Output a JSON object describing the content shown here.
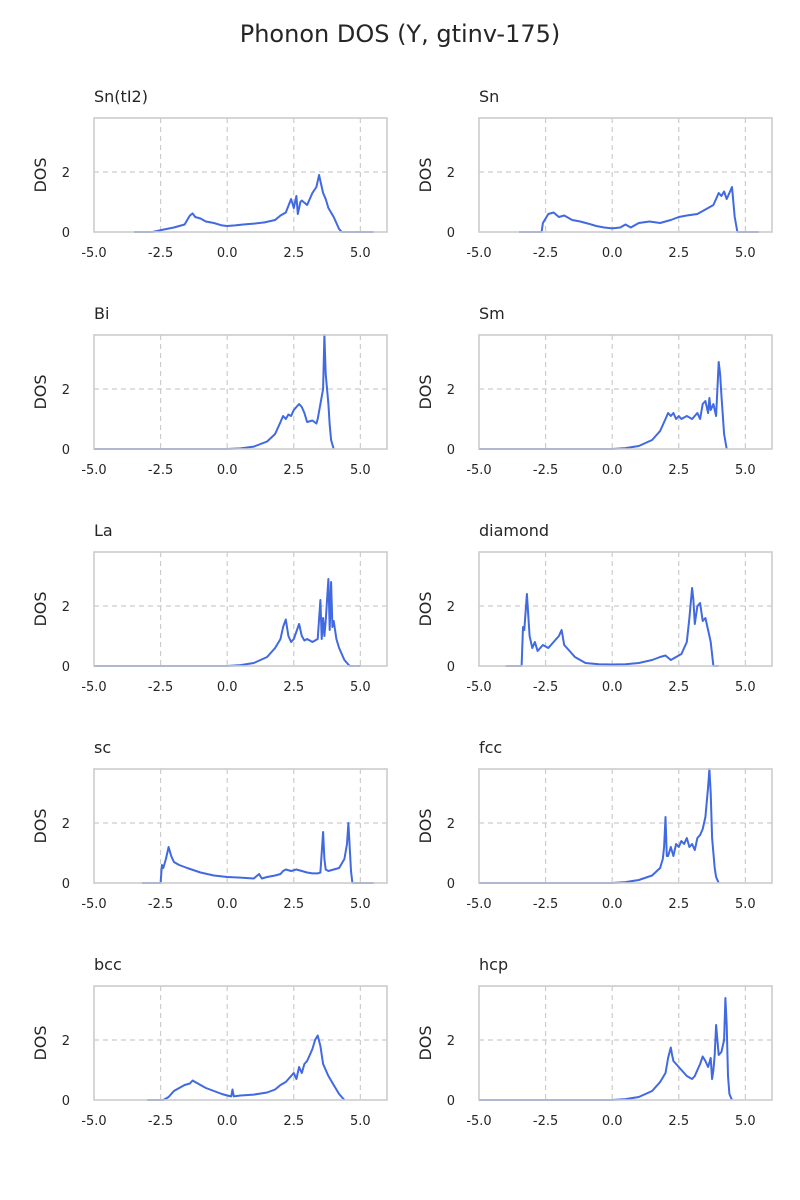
{
  "figure": {
    "title": "Phonon DOS (Y, gtinv-175)"
  },
  "style": {
    "line_color": "#4169e1",
    "grid_color": "#cccccc",
    "frame_color": "#cccccc"
  },
  "chart_data": [
    {
      "type": "line",
      "title": "Sn(tI2)",
      "xlabel": "",
      "ylabel": "DOS",
      "xlim": [
        -5.0,
        6.0
      ],
      "ylim": [
        0,
        3.8
      ],
      "xticks": [
        "-5.0",
        "-2.5",
        "0.0",
        "2.5",
        "5.0"
      ],
      "yticks": [
        "0",
        "2"
      ],
      "grid": true,
      "series": [
        {
          "x": [
            -3.5,
            -2.8,
            -2.4,
            -2.0,
            -1.6,
            -1.4,
            -1.3,
            -1.2,
            -1.0,
            -0.8,
            -0.5,
            -0.2,
            0.0,
            0.3,
            0.6,
            1.0,
            1.4,
            1.8,
            2.0,
            2.2,
            2.4,
            2.5,
            2.6,
            2.65,
            2.75,
            2.8,
            3.0,
            3.2,
            3.35,
            3.45,
            3.5,
            3.6,
            3.7,
            3.8,
            4.0,
            4.1,
            4.2,
            4.3,
            4.5,
            5.5
          ],
          "y": [
            0,
            0,
            0.08,
            0.15,
            0.25,
            0.55,
            0.62,
            0.5,
            0.45,
            0.35,
            0.3,
            0.22,
            0.2,
            0.22,
            0.25,
            0.28,
            0.32,
            0.4,
            0.55,
            0.65,
            1.1,
            0.8,
            1.2,
            0.6,
            1.0,
            1.05,
            0.9,
            1.3,
            1.5,
            1.9,
            1.7,
            1.3,
            1.1,
            0.8,
            0.5,
            0.3,
            0.1,
            0,
            0,
            0
          ]
        }
      ]
    },
    {
      "type": "line",
      "title": "Sn",
      "xlabel": "",
      "ylabel": "DOS",
      "xlim": [
        -5.0,
        6.0
      ],
      "ylim": [
        0,
        3.8
      ],
      "xticks": [
        "-5.0",
        "-2.5",
        "0.0",
        "2.5",
        "5.0"
      ],
      "yticks": [
        "0",
        "2"
      ],
      "grid": true,
      "series": [
        {
          "x": [
            -3.5,
            -2.65,
            -2.6,
            -2.4,
            -2.2,
            -2.0,
            -1.8,
            -1.5,
            -1.2,
            -0.9,
            -0.6,
            -0.3,
            0.0,
            0.3,
            0.5,
            0.7,
            1.0,
            1.4,
            1.8,
            2.2,
            2.5,
            2.8,
            3.2,
            3.5,
            3.8,
            4.0,
            4.1,
            4.2,
            4.3,
            4.4,
            4.5,
            4.6,
            4.7,
            5.5
          ],
          "y": [
            0,
            0,
            0.3,
            0.6,
            0.65,
            0.5,
            0.55,
            0.4,
            0.35,
            0.28,
            0.2,
            0.15,
            0.12,
            0.15,
            0.25,
            0.15,
            0.3,
            0.35,
            0.3,
            0.4,
            0.5,
            0.55,
            0.6,
            0.75,
            0.9,
            1.3,
            1.2,
            1.35,
            1.1,
            1.3,
            1.5,
            0.5,
            0,
            0
          ]
        }
      ]
    },
    {
      "type": "line",
      "title": "Bi",
      "xlabel": "",
      "ylabel": "DOS",
      "xlim": [
        -5.0,
        6.0
      ],
      "ylim": [
        0,
        3.8
      ],
      "xticks": [
        "-5.0",
        "-2.5",
        "0.0",
        "2.5",
        "5.0"
      ],
      "yticks": [
        "0",
        "2"
      ],
      "grid": true,
      "series": [
        {
          "x": [
            -5.0,
            0.0,
            0.5,
            1.0,
            1.5,
            1.8,
            2.0,
            2.1,
            2.2,
            2.3,
            2.4,
            2.5,
            2.6,
            2.7,
            2.8,
            2.9,
            3.0,
            3.2,
            3.35,
            3.4,
            3.5,
            3.6,
            3.65,
            3.7,
            3.8,
            3.85,
            3.9,
            4.0
          ],
          "y": [
            0,
            0,
            0.02,
            0.08,
            0.25,
            0.5,
            0.9,
            1.1,
            1.0,
            1.15,
            1.1,
            1.3,
            1.4,
            1.5,
            1.4,
            1.2,
            0.9,
            0.95,
            0.85,
            1.0,
            1.5,
            2.0,
            3.8,
            2.5,
            1.5,
            0.8,
            0.3,
            0
          ]
        }
      ]
    },
    {
      "type": "line",
      "title": "Sm",
      "xlabel": "",
      "ylabel": "DOS",
      "xlim": [
        -5.0,
        6.0
      ],
      "ylim": [
        0,
        3.8
      ],
      "xticks": [
        "-5.0",
        "-2.5",
        "0.0",
        "2.5",
        "5.0"
      ],
      "yticks": [
        "0",
        "2"
      ],
      "grid": true,
      "series": [
        {
          "x": [
            -5.0,
            0.0,
            0.5,
            1.0,
            1.5,
            1.8,
            2.0,
            2.1,
            2.2,
            2.3,
            2.4,
            2.5,
            2.6,
            2.8,
            3.0,
            3.2,
            3.3,
            3.4,
            3.5,
            3.6,
            3.65,
            3.7,
            3.8,
            3.9,
            4.0,
            4.05,
            4.1,
            4.2,
            4.3
          ],
          "y": [
            0,
            0,
            0.03,
            0.1,
            0.3,
            0.6,
            1.0,
            1.2,
            1.1,
            1.2,
            1.0,
            1.1,
            1.0,
            1.1,
            1.0,
            1.2,
            1.0,
            1.5,
            1.6,
            1.2,
            1.7,
            1.3,
            1.5,
            1.1,
            2.9,
            2.5,
            1.8,
            0.5,
            0
          ]
        }
      ]
    },
    {
      "type": "line",
      "title": "La",
      "xlabel": "",
      "ylabel": "DOS",
      "xlim": [
        -5.0,
        6.0
      ],
      "ylim": [
        0,
        3.8
      ],
      "xticks": [
        "-5.0",
        "-2.5",
        "0.0",
        "2.5",
        "5.0"
      ],
      "yticks": [
        "0",
        "2"
      ],
      "grid": true,
      "series": [
        {
          "x": [
            -5.0,
            0.0,
            0.5,
            1.0,
            1.5,
            1.8,
            2.0,
            2.1,
            2.2,
            2.3,
            2.4,
            2.5,
            2.7,
            2.8,
            2.9,
            3.0,
            3.2,
            3.4,
            3.5,
            3.55,
            3.6,
            3.65,
            3.7,
            3.8,
            3.85,
            3.9,
            3.95,
            4.0,
            4.1,
            4.2,
            4.4,
            4.6,
            5.0
          ],
          "y": [
            0,
            0,
            0.03,
            0.1,
            0.3,
            0.6,
            0.9,
            1.3,
            1.55,
            1.0,
            0.8,
            0.9,
            1.4,
            1.0,
            0.85,
            0.9,
            0.8,
            0.9,
            2.2,
            0.9,
            1.6,
            1.0,
            1.5,
            2.9,
            1.2,
            2.8,
            1.3,
            1.5,
            0.9,
            0.6,
            0.2,
            0,
            0
          ]
        }
      ]
    },
    {
      "type": "line",
      "title": "diamond",
      "xlabel": "",
      "ylabel": "DOS",
      "xlim": [
        -5.0,
        6.0
      ],
      "ylim": [
        0,
        3.8
      ],
      "xticks": [
        "-5.0",
        "-2.5",
        "0.0",
        "2.5",
        "5.0"
      ],
      "yticks": [
        "0",
        "2"
      ],
      "grid": true,
      "series": [
        {
          "x": [
            -4.0,
            -3.4,
            -3.35,
            -3.3,
            -3.2,
            -3.1,
            -3.0,
            -2.9,
            -2.8,
            -2.6,
            -2.4,
            -2.2,
            -2.0,
            -1.9,
            -1.8,
            -1.6,
            -1.4,
            -1.2,
            -1.0,
            -0.5,
            0.0,
            0.5,
            1.0,
            1.5,
            1.8,
            2.0,
            2.2,
            2.4,
            2.6,
            2.8,
            2.9,
            3.0,
            3.05,
            3.1,
            3.2,
            3.3,
            3.4,
            3.5,
            3.6,
            3.7,
            3.8,
            4.0
          ],
          "y": [
            0,
            0,
            1.3,
            1.2,
            2.4,
            1.0,
            0.6,
            0.8,
            0.5,
            0.7,
            0.6,
            0.8,
            1.0,
            1.2,
            0.7,
            0.5,
            0.3,
            0.2,
            0.1,
            0.06,
            0.05,
            0.06,
            0.1,
            0.2,
            0.3,
            0.35,
            0.2,
            0.3,
            0.4,
            0.8,
            1.6,
            2.6,
            2.2,
            1.4,
            2.0,
            2.1,
            1.5,
            1.6,
            1.2,
            0.8,
            0,
            0
          ]
        }
      ]
    },
    {
      "type": "line",
      "title": "sc",
      "xlabel": "",
      "ylabel": "DOS",
      "xlim": [
        -5.0,
        6.0
      ],
      "ylim": [
        0,
        3.8
      ],
      "xticks": [
        "-5.0",
        "-2.5",
        "0.0",
        "2.5",
        "5.0"
      ],
      "yticks": [
        "0",
        "2"
      ],
      "grid": true,
      "series": [
        {
          "x": [
            -3.2,
            -2.5,
            -2.45,
            -2.4,
            -2.3,
            -2.2,
            -2.1,
            -2.0,
            -1.8,
            -1.5,
            -1.0,
            -0.5,
            0.0,
            0.5,
            1.0,
            1.2,
            1.3,
            1.5,
            1.8,
            2.0,
            2.1,
            2.2,
            2.4,
            2.6,
            2.8,
            3.0,
            3.2,
            3.4,
            3.5,
            3.6,
            3.65,
            3.7,
            3.8,
            4.0,
            4.2,
            4.4,
            4.5,
            4.55,
            4.6,
            4.65,
            4.7,
            4.8,
            5.5
          ],
          "y": [
            0,
            0,
            0.6,
            0.5,
            0.8,
            1.2,
            0.9,
            0.7,
            0.6,
            0.5,
            0.35,
            0.25,
            0.2,
            0.18,
            0.15,
            0.3,
            0.15,
            0.2,
            0.25,
            0.3,
            0.4,
            0.45,
            0.4,
            0.45,
            0.4,
            0.35,
            0.32,
            0.32,
            0.35,
            1.7,
            0.8,
            0.45,
            0.4,
            0.45,
            0.5,
            0.8,
            1.3,
            2.0,
            1.2,
            0.4,
            0,
            0,
            0
          ]
        }
      ]
    },
    {
      "type": "line",
      "title": "fcc",
      "xlabel": "",
      "ylabel": "DOS",
      "xlim": [
        -5.0,
        6.0
      ],
      "ylim": [
        0,
        3.8
      ],
      "xticks": [
        "-5.0",
        "-2.5",
        "0.0",
        "2.5",
        "5.0"
      ],
      "yticks": [
        "0",
        "2"
      ],
      "grid": true,
      "series": [
        {
          "x": [
            -5.0,
            0.0,
            0.5,
            1.0,
            1.5,
            1.8,
            1.9,
            1.95,
            2.0,
            2.05,
            2.1,
            2.2,
            2.3,
            2.4,
            2.5,
            2.6,
            2.7,
            2.8,
            2.9,
            3.0,
            3.1,
            3.2,
            3.3,
            3.4,
            3.5,
            3.6,
            3.65,
            3.7,
            3.75,
            3.8,
            3.85,
            3.9,
            4.0
          ],
          "y": [
            0,
            0,
            0.03,
            0.1,
            0.25,
            0.5,
            0.8,
            1.2,
            2.2,
            0.9,
            0.9,
            1.2,
            0.9,
            1.3,
            1.2,
            1.4,
            1.3,
            1.5,
            1.2,
            1.3,
            1.1,
            1.5,
            1.6,
            1.8,
            2.2,
            3.2,
            3.8,
            3.0,
            1.5,
            1.0,
            0.5,
            0.2,
            0
          ]
        }
      ]
    },
    {
      "type": "line",
      "title": "bcc",
      "xlabel": "",
      "ylabel": "DOS",
      "xlim": [
        -5.0,
        6.0
      ],
      "ylim": [
        0,
        3.8
      ],
      "xticks": [
        "-5.0",
        "-2.5",
        "0.0",
        "2.5",
        "5.0"
      ],
      "yticks": [
        "0",
        "2"
      ],
      "grid": true,
      "series": [
        {
          "x": [
            -3.0,
            -2.4,
            -2.2,
            -2.0,
            -1.8,
            -1.6,
            -1.4,
            -1.3,
            -1.2,
            -1.0,
            -0.8,
            -0.5,
            -0.2,
            0.0,
            0.15,
            0.2,
            0.25,
            0.5,
            1.0,
            1.5,
            1.8,
            2.0,
            2.2,
            2.4,
            2.5,
            2.6,
            2.7,
            2.8,
            2.9,
            3.0,
            3.1,
            3.2,
            3.3,
            3.4,
            3.5,
            3.6,
            3.8,
            4.0,
            4.2,
            4.4
          ],
          "y": [
            0,
            0,
            0.1,
            0.3,
            0.4,
            0.5,
            0.55,
            0.65,
            0.6,
            0.5,
            0.4,
            0.3,
            0.2,
            0.15,
            0.12,
            0.35,
            0.12,
            0.15,
            0.18,
            0.25,
            0.35,
            0.5,
            0.6,
            0.8,
            0.9,
            0.7,
            1.1,
            0.9,
            1.2,
            1.3,
            1.5,
            1.7,
            2.0,
            2.15,
            1.8,
            1.2,
            0.8,
            0.5,
            0.2,
            0
          ]
        }
      ]
    },
    {
      "type": "line",
      "title": "hcp",
      "xlabel": "",
      "ylabel": "DOS",
      "xlim": [
        -5.0,
        6.0
      ],
      "ylim": [
        0,
        3.8
      ],
      "xticks": [
        "-5.0",
        "-2.5",
        "0.0",
        "2.5",
        "5.0"
      ],
      "yticks": [
        "0",
        "2"
      ],
      "grid": true,
      "series": [
        {
          "x": [
            -5.0,
            0.0,
            0.5,
            1.0,
            1.5,
            1.8,
            2.0,
            2.1,
            2.2,
            2.25,
            2.3,
            2.4,
            2.6,
            2.8,
            3.0,
            3.1,
            3.2,
            3.3,
            3.4,
            3.5,
            3.6,
            3.7,
            3.75,
            3.8,
            3.85,
            3.9,
            4.0,
            4.1,
            4.2,
            4.25,
            4.3,
            4.35,
            4.4,
            4.5
          ],
          "y": [
            0,
            0,
            0.03,
            0.1,
            0.3,
            0.6,
            0.9,
            1.4,
            1.75,
            1.5,
            1.3,
            1.2,
            1.0,
            0.8,
            0.7,
            0.8,
            1.0,
            1.2,
            1.45,
            1.3,
            1.1,
            1.4,
            0.7,
            1.0,
            1.5,
            2.5,
            1.5,
            1.6,
            2.0,
            3.4,
            2.5,
            0.8,
            0.2,
            0
          ]
        }
      ]
    }
  ]
}
